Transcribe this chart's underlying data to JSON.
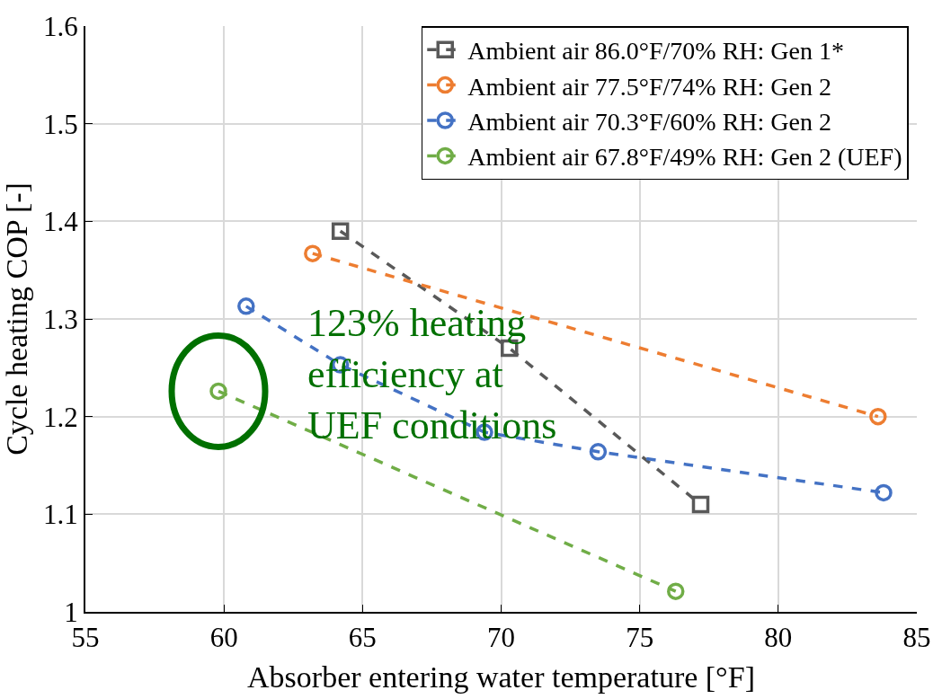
{
  "chart_data": {
    "type": "line",
    "xlabel": "Absorber entering water temperature [°F]",
    "ylabel": "Cycle heating COP [-]",
    "series": [
      {
        "name": "Ambient air 86.0°F/70% RH: Gen 1*",
        "color": "#595959",
        "marker": "square",
        "x": [
          64.2,
          70.3,
          77.2
        ],
        "values": [
          1.39,
          1.27,
          1.11
        ]
      },
      {
        "name": "Ambient air 77.5°F/74% RH: Gen 2",
        "color": "#ed7d31",
        "marker": "circle",
        "x": [
          63.2,
          83.6
        ],
        "values": [
          1.367,
          1.2
        ]
      },
      {
        "name": "Ambient air 70.3°F/60% RH: Gen 2",
        "color": "#4472c4",
        "marker": "circle",
        "x": [
          60.8,
          64.2,
          69.4,
          73.5,
          83.8
        ],
        "values": [
          1.313,
          1.253,
          1.184,
          1.164,
          1.122
        ]
      },
      {
        "name": "Ambient air 67.8°F/49% RH: Gen 2 (UEF)",
        "color": "#70ad47",
        "marker": "circle",
        "x": [
          59.8,
          76.3
        ],
        "values": [
          1.226,
          1.021
        ]
      }
    ],
    "line_style": "dashed",
    "xlim": [
      55,
      85
    ],
    "xticks": [
      55,
      60,
      65,
      70,
      75,
      80,
      85
    ],
    "ylim": [
      1,
      1.6
    ],
    "yticks": [
      1,
      1.1,
      1.2,
      1.3,
      1.4,
      1.5,
      1.6
    ],
    "grid": true,
    "legend": "top right",
    "annotations": [
      "123% heating\nefficiency at\nUEF conditions"
    ]
  }
}
